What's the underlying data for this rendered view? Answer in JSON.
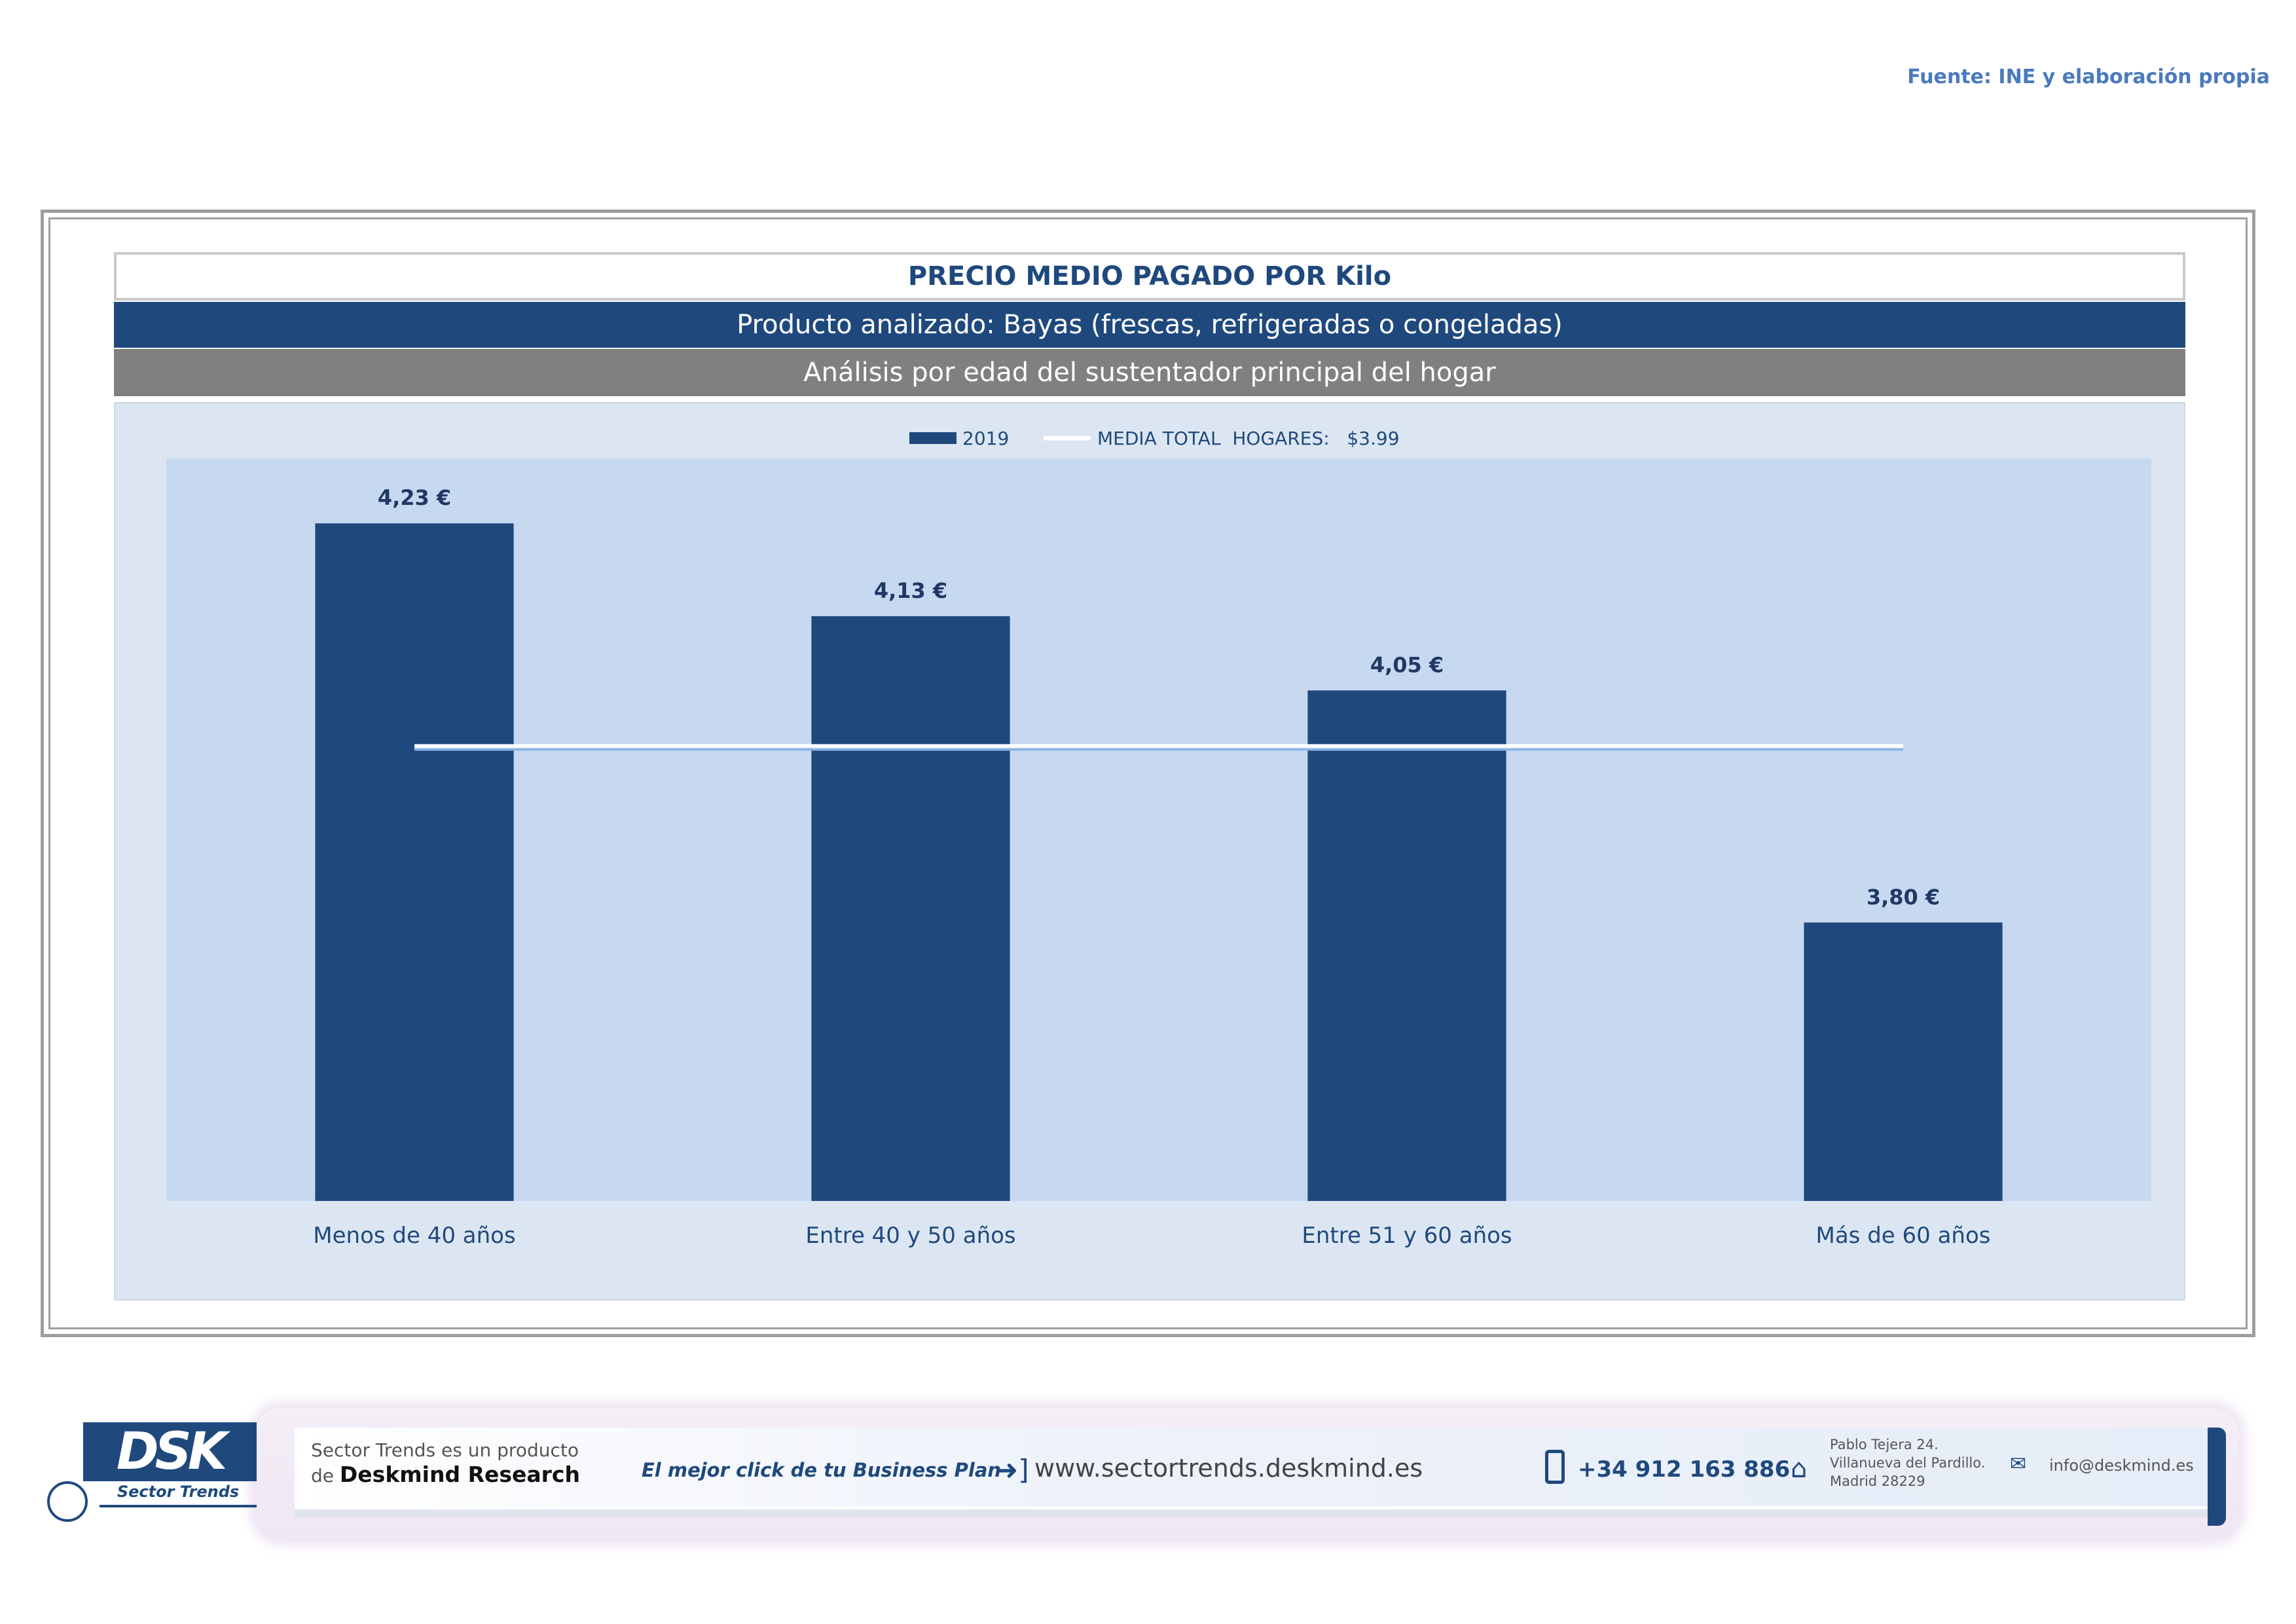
{
  "source_note": "Fuente: INE y elaboración propia",
  "header": {
    "title": "PRECIO MEDIO PAGADO POR Kilo",
    "product": "Producto analizado: Bayas (frescas, refrigeradas o congeladas)",
    "analysis": "Análisis por edad del sustentador principal del hogar"
  },
  "chart_data": {
    "type": "bar",
    "categories": [
      "Menos de 40 años",
      "Entre 40 y 50 años",
      "Entre 51  y 60 años",
      "Más de 60 años"
    ],
    "series": [
      {
        "name": "2019",
        "values": [
          4.23,
          4.13,
          4.05,
          3.8
        ],
        "labels": [
          "4,23 €",
          "4,13 €",
          "4,05 €",
          "3,80 €"
        ]
      }
    ],
    "reference_line": {
      "name": "MEDIA TOTAL  HOGARES:   $3.99",
      "value": 3.99
    },
    "ylim": [
      3.5,
      4.3
    ],
    "legend_position": "top-center",
    "grid": false,
    "colors": {
      "bar": "#1F497D",
      "plot_bg": "#C6D9F1",
      "chart_bg": "#DCE6F2",
      "line": "#ffffff"
    }
  },
  "footer": {
    "logo_text": "DSK",
    "logo_sub": "Sector Trends",
    "product_line1": "Sector Trends es un producto",
    "product_line2_prefix": "de",
    "product_line2_brand": "Deskmind Research",
    "slogan": "El mejor click de tu Business Plan",
    "website": "www.sectortrends.deskmind.es",
    "phone": "+34 912 163 886",
    "address_line1": "Pablo Tejera 24.",
    "address_line2": "Villanueva del Pardillo.",
    "address_line3": "Madrid 28229",
    "email": "info@deskmind.es",
    "icons": [
      "arrow-right-icon",
      "phone-icon",
      "home-icon",
      "mail-icon"
    ]
  }
}
